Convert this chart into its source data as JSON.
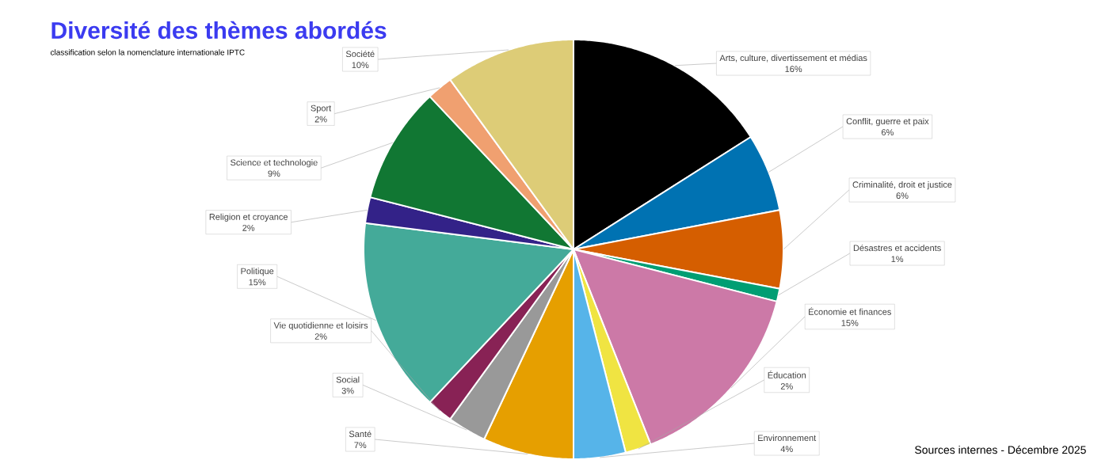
{
  "chart_data": {
    "type": "pie",
    "title": "Diversité des thèmes abordés",
    "subtitle": "classification selon la nomenclature internationale IPTC",
    "categories": [
      "Arts, culture, divertissement et médias",
      "Conflit, guerre et paix",
      "Criminalité, droit et justice",
      "Désastres et accidents",
      "Économie et finances",
      "Éducation",
      "Environnement",
      "Santé",
      "Social",
      "Vie quotidienne et loisirs",
      "Politique",
      "Religion et croyance",
      "Science et technologie",
      "Sport",
      "Société"
    ],
    "values": [
      16,
      6,
      6,
      1,
      15,
      2,
      4,
      7,
      3,
      2,
      15,
      2,
      9,
      2,
      10
    ],
    "value_labels": [
      "16%",
      "6%",
      "6%",
      "1%",
      "15%",
      "2%",
      "4%",
      "7%",
      "3%",
      "2%",
      "15%",
      "2%",
      "9%",
      "2%",
      "10%"
    ],
    "colors": [
      "#000000",
      "#0072b2",
      "#d55e00",
      "#009e73",
      "#cc79a7",
      "#f0e442",
      "#56b4e9",
      "#e69f00",
      "#999999",
      "#882255",
      "#44aa99",
      "#332288",
      "#117733",
      "#f0a070",
      "#ddcc77"
    ],
    "annotations": [
      "Sources internes - Décembre 2025"
    ]
  }
}
